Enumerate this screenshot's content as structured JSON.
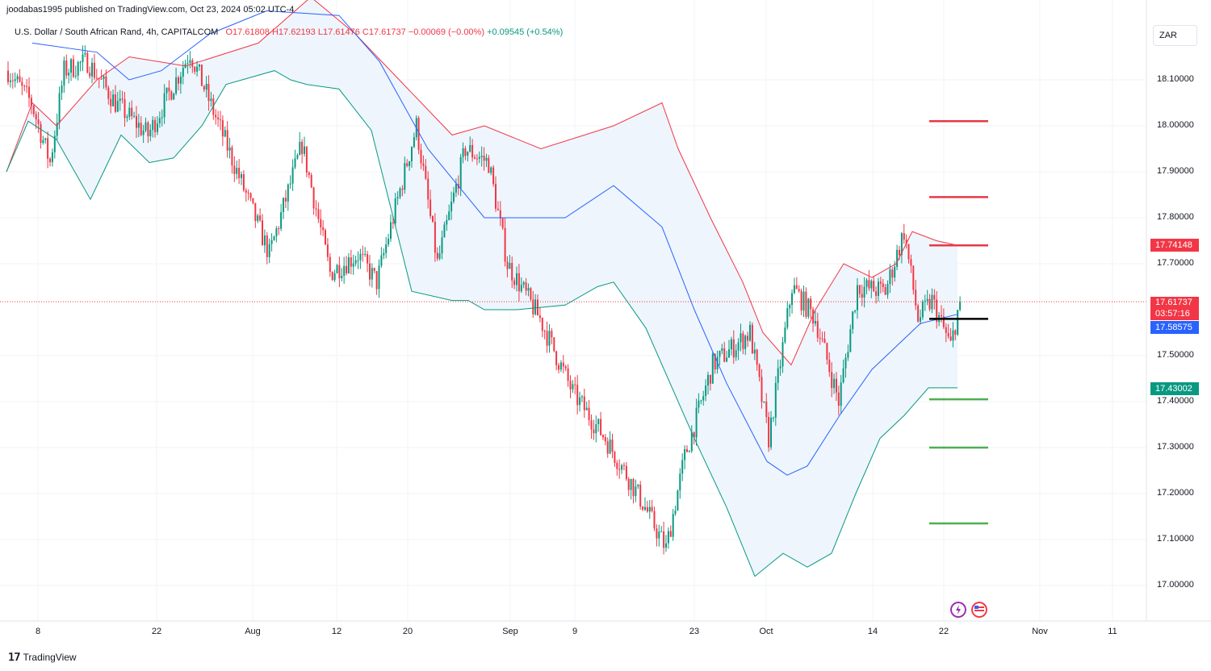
{
  "header": {
    "published_by": "joodabas1995 published on TradingView.com, Oct 23, 2024 05:02 UTC-4",
    "symbol_desc": "U.S. Dollar / South African Rand, 4h, CAPITALCOM",
    "open_label": "O17.61808",
    "high_label": "H17.62193",
    "low_label": "L17.61476",
    "close_label": "C17.61737",
    "change_label": "−0.00069 (−0.00%)",
    "change2_label": "+0.09545 (+0.54%)",
    "currency": "ZAR"
  },
  "price_tags": {
    "upper_band": "17.74148",
    "last_price": "17.61737",
    "countdown": "03:57:16",
    "middle_band": "17.58575",
    "lower_band": "17.43002"
  },
  "colors": {
    "up": "#089981",
    "down": "#f23645",
    "upper_band": "#f23645",
    "lower_band": "#089981",
    "basis": "#2962ff",
    "fill": "#eef5fc",
    "level_red": "#e63946",
    "level_green": "#4caf50",
    "level_black": "#000000"
  },
  "footer": {
    "brand": "TradingView"
  },
  "chart_data": {
    "type": "candlestick",
    "title": "U.S. Dollar / South African Rand, 4h, CAPITALCOM",
    "x_ticks": [
      "8",
      "22",
      "Aug",
      "12",
      "20",
      "Sep",
      "9",
      "23",
      "Oct",
      "14",
      "22",
      "Nov",
      "11"
    ],
    "y_ticks": [
      "18.10000",
      "18.00000",
      "17.90000",
      "17.80000",
      "17.70000",
      "17.50000",
      "17.40000",
      "17.30000",
      "17.20000",
      "17.10000",
      "17.00000"
    ],
    "ylim": [
      16.98,
      18.22
    ],
    "grid": true,
    "anchors": [
      {
        "i": 0,
        "p": 18.12
      },
      {
        "i": 10,
        "p": 18.05
      },
      {
        "i": 18,
        "p": 17.92
      },
      {
        "i": 24,
        "p": 18.12
      },
      {
        "i": 34,
        "p": 18.14
      },
      {
        "i": 46,
        "p": 18.05
      },
      {
        "i": 60,
        "p": 17.98
      },
      {
        "i": 78,
        "p": 18.16
      },
      {
        "i": 92,
        "p": 17.98
      },
      {
        "i": 112,
        "p": 17.72
      },
      {
        "i": 126,
        "p": 17.96
      },
      {
        "i": 138,
        "p": 17.68
      },
      {
        "i": 150,
        "p": 17.72
      },
      {
        "i": 158,
        "p": 17.66
      },
      {
        "i": 175,
        "p": 18.0
      },
      {
        "i": 184,
        "p": 17.7
      },
      {
        "i": 196,
        "p": 17.95
      },
      {
        "i": 206,
        "p": 17.92
      },
      {
        "i": 214,
        "p": 17.7
      },
      {
        "i": 228,
        "p": 17.58
      },
      {
        "i": 242,
        "p": 17.42
      },
      {
        "i": 256,
        "p": 17.32
      },
      {
        "i": 272,
        "p": 17.18
      },
      {
        "i": 282,
        "p": 17.08
      },
      {
        "i": 290,
        "p": 17.28
      },
      {
        "i": 302,
        "p": 17.48
      },
      {
        "i": 318,
        "p": 17.55
      },
      {
        "i": 326,
        "p": 17.32
      },
      {
        "i": 336,
        "p": 17.65
      },
      {
        "i": 346,
        "p": 17.58
      },
      {
        "i": 356,
        "p": 17.4
      },
      {
        "i": 364,
        "p": 17.65
      },
      {
        "i": 376,
        "p": 17.64
      },
      {
        "i": 384,
        "p": 17.77
      },
      {
        "i": 390,
        "p": 17.58
      },
      {
        "i": 396,
        "p": 17.62
      },
      {
        "i": 404,
        "p": 17.52
      },
      {
        "i": 408,
        "p": 17.62
      }
    ],
    "upper_band": [
      [
        8,
        17.9
      ],
      [
        40,
        18.05
      ],
      [
        70,
        18.0
      ],
      [
        120,
        18.1
      ],
      [
        160,
        18.15
      ],
      [
        230,
        18.13
      ],
      [
        320,
        18.18
      ],
      [
        385,
        18.28
      ],
      [
        440,
        18.2
      ],
      [
        560,
        17.98
      ],
      [
        600,
        18.0
      ],
      [
        670,
        17.95
      ],
      [
        760,
        18.0
      ],
      [
        820,
        18.05
      ],
      [
        840,
        17.95
      ],
      [
        880,
        17.8
      ],
      [
        920,
        17.66
      ],
      [
        945,
        17.55
      ],
      [
        980,
        17.48
      ],
      [
        1010,
        17.6
      ],
      [
        1045,
        17.7
      ],
      [
        1080,
        17.67
      ],
      [
        1110,
        17.7
      ],
      [
        1130,
        17.77
      ],
      [
        1160,
        17.75
      ],
      [
        1186,
        17.74
      ]
    ],
    "lower_band": [
      [
        8,
        17.9
      ],
      [
        35,
        18.01
      ],
      [
        70,
        17.97
      ],
      [
        112,
        17.84
      ],
      [
        150,
        17.98
      ],
      [
        185,
        17.92
      ],
      [
        215,
        17.93
      ],
      [
        250,
        18.0
      ],
      [
        280,
        18.09
      ],
      [
        340,
        18.12
      ],
      [
        360,
        18.1
      ],
      [
        380,
        18.09
      ],
      [
        420,
        18.08
      ],
      [
        460,
        17.99
      ],
      [
        510,
        17.64
      ],
      [
        560,
        17.62
      ],
      [
        580,
        17.62
      ],
      [
        600,
        17.6
      ],
      [
        640,
        17.6
      ],
      [
        700,
        17.61
      ],
      [
        740,
        17.65
      ],
      [
        760,
        17.66
      ],
      [
        800,
        17.56
      ],
      [
        860,
        17.32
      ],
      [
        900,
        17.17
      ],
      [
        935,
        17.02
      ],
      [
        970,
        17.07
      ],
      [
        1000,
        17.04
      ],
      [
        1030,
        17.07
      ],
      [
        1060,
        17.2
      ],
      [
        1090,
        17.32
      ],
      [
        1120,
        17.37
      ],
      [
        1150,
        17.43
      ],
      [
        1186,
        17.43
      ]
    ],
    "basis": [
      [
        40,
        18.18
      ],
      [
        120,
        18.16
      ],
      [
        160,
        18.1
      ],
      [
        200,
        18.12
      ],
      [
        260,
        18.2
      ],
      [
        330,
        18.25
      ],
      [
        420,
        18.24
      ],
      [
        470,
        18.14
      ],
      [
        530,
        17.95
      ],
      [
        600,
        17.8
      ],
      [
        640,
        17.8
      ],
      [
        700,
        17.8
      ],
      [
        760,
        17.87
      ],
      [
        820,
        17.78
      ],
      [
        860,
        17.6
      ],
      [
        900,
        17.44
      ],
      [
        950,
        17.27
      ],
      [
        975,
        17.24
      ],
      [
        1000,
        17.26
      ],
      [
        1040,
        17.37
      ],
      [
        1080,
        17.47
      ],
      [
        1110,
        17.52
      ],
      [
        1140,
        17.57
      ],
      [
        1186,
        17.59
      ]
    ],
    "levels": [
      {
        "price": 18.01,
        "color": "red"
      },
      {
        "price": 17.845,
        "color": "red"
      },
      {
        "price": 17.74,
        "color": "red"
      },
      {
        "price": 17.58,
        "color": "black"
      },
      {
        "price": 17.405,
        "color": "green"
      },
      {
        "price": 17.3,
        "color": "green"
      },
      {
        "price": 17.135,
        "color": "green"
      }
    ],
    "last_price": 17.61737
  }
}
